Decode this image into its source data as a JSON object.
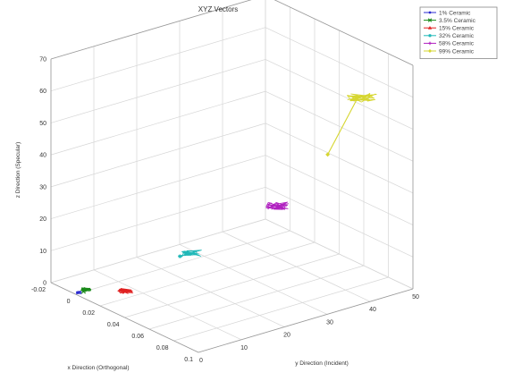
{
  "chart_data": {
    "type": "scatter",
    "title": "XYZ Vectors",
    "xlabel": "x Direction (Orthogonal)",
    "ylabel": "y Direction (Incident)",
    "zlabel": "z Direction (Specular)",
    "x_ticks": [
      "-0.02",
      "0",
      "0.02",
      "0.04",
      "0.06",
      "0.08",
      "0.1"
    ],
    "y_ticks": [
      "0",
      "10",
      "20",
      "30",
      "40",
      "50"
    ],
    "z_ticks": [
      "0",
      "10",
      "20",
      "30",
      "40",
      "50",
      "60",
      "70"
    ],
    "xlim": [
      -0.02,
      0.1
    ],
    "ylim": [
      0,
      50
    ],
    "zlim": [
      0,
      70
    ],
    "grid": true,
    "legend_position": "top-right",
    "series": [
      {
        "name": "1% Ceramic",
        "color": "#2b2bd0",
        "marker": "o",
        "start": [
          0.0,
          0.5,
          0.3
        ],
        "cluster": [
          0.0,
          0.6,
          0.3
        ]
      },
      {
        "name": "3.5% Ceramic",
        "color": "#1a8a1a",
        "marker": "x",
        "start": [
          0.003,
          1.0,
          1.0
        ],
        "cluster": [
          0.003,
          1.2,
          1.5
        ]
      },
      {
        "name": "15% Ceramic",
        "color": "#e02020",
        "marker": "^",
        "start": [
          0.03,
          2.0,
          6.0
        ],
        "cluster": [
          0.03,
          2.5,
          5.5
        ]
      },
      {
        "name": "32% Ceramic",
        "color": "#20b8b8",
        "marker": "*",
        "start": [
          0.05,
          10.0,
          17.0
        ],
        "cluster": [
          0.05,
          12.0,
          17.0
        ]
      },
      {
        "name": "58% Ceramic",
        "color": "#b020c0",
        "marker": "+",
        "start": [
          0.08,
          22.0,
          33.0
        ],
        "cluster": [
          0.08,
          23.0,
          33.0
        ]
      },
      {
        "name": "99% Ceramic",
        "color": "#d6d630",
        "marker": "diamond",
        "start": [
          0.09,
          33.0,
          47.0
        ],
        "cluster": [
          0.09,
          40.0,
          62.0
        ]
      }
    ]
  }
}
